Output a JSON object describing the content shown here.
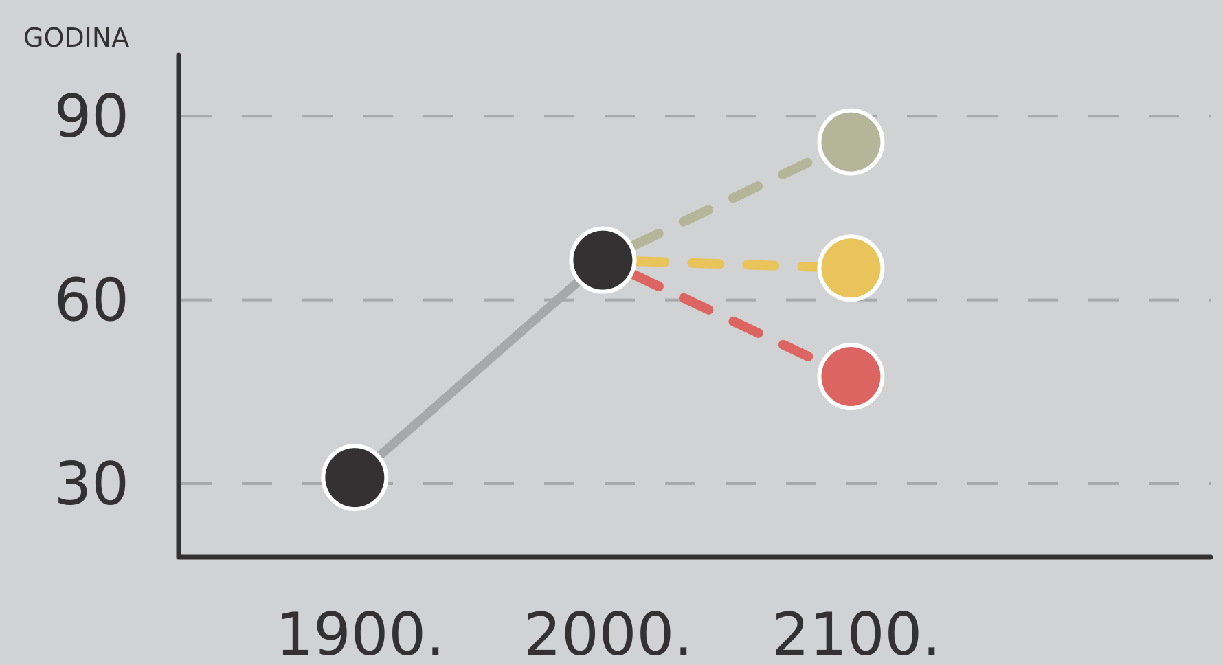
{
  "chart_data": {
    "type": "line",
    "ylabel": "GODINA",
    "xlabel": "",
    "title": "",
    "x": [
      1900,
      2000,
      2100
    ],
    "x_tick_labels": [
      "1900.",
      "2000.",
      "2100."
    ],
    "y_ticks": [
      30,
      60,
      90
    ],
    "y_tick_labels": [
      "30",
      "60",
      "90"
    ],
    "ylim": [
      18,
      100
    ],
    "xlim": [
      1829,
      2245
    ],
    "grid": "horizontal dashed",
    "historical": {
      "x": [
        1900,
        2000
      ],
      "y": [
        31,
        66.5
      ],
      "color": "#a7a8aa"
    },
    "projections": [
      {
        "x": [
          2000,
          2100
        ],
        "y": [
          66.5,
          85.8
        ],
        "color": "#b5b59a",
        "dashed": true
      },
      {
        "x": [
          2000,
          2100
        ],
        "y": [
          66.5,
          65.2
        ],
        "color": "#e8c45a",
        "dashed": true
      },
      {
        "x": [
          2000,
          2100
        ],
        "y": [
          66.5,
          47.5
        ],
        "color": "#dc6561",
        "dashed": true
      }
    ],
    "colors": {
      "background": "#d1d2d4",
      "axis": "#333132",
      "grid": "#a7a8aa",
      "point_dark": "#333132",
      "point_outline": "#ffffff"
    }
  }
}
